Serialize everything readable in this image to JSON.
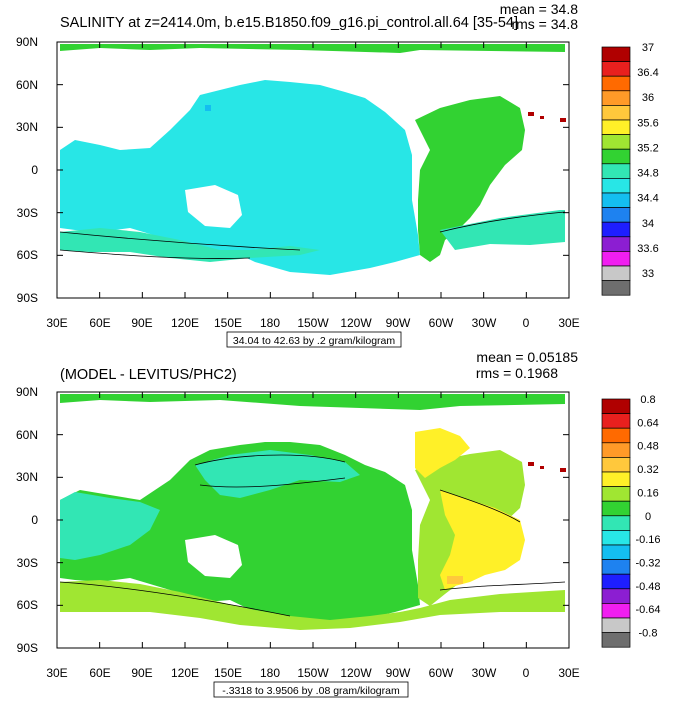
{
  "panels": [
    {
      "title": "SALINITY at z=2414.0m, b.e15.B1850.f09_g16.pi_control.all.64 [35-54]",
      "stats": {
        "mean": "mean = 34.8",
        "rms": "rms = 34.8"
      },
      "caption": "34.04 to 42.63 by .2 gram/kilogram",
      "lat_labels": [
        "90N",
        "60N",
        "30N",
        "0",
        "30S",
        "60S",
        "90S"
      ],
      "lon_labels": [
        "30E",
        "60E",
        "90E",
        "120E",
        "150E",
        "180",
        "150W",
        "120W",
        "90W",
        "60W",
        "30W",
        "0",
        "30E"
      ],
      "colorbar": {
        "colors": [
          "#b00000",
          "#e8201e",
          "#ff6a00",
          "#ff9a28",
          "#ffc83c",
          "#fff028",
          "#a0e632",
          "#32d232",
          "#32e6b4",
          "#28e6e6",
          "#14bef0",
          "#1e82f0",
          "#1e1eff",
          "#8c1ed2",
          "#f01ef0",
          "#c8c8c8",
          "#6e6e6e"
        ],
        "labels": [
          "37",
          "36.4",
          "36",
          "35.6",
          "35.2",
          "34.8",
          "34.4",
          "34",
          "33.6",
          "33"
        ]
      }
    },
    {
      "title": "(MODEL - LEVITUS/PHC2)",
      "stats": {
        "mean": "mean = 0.05185",
        "rms": "rms = 0.1968"
      },
      "caption": "-.3318 to 3.9506 by .08 gram/kilogram",
      "lat_labels": [
        "90N",
        "60N",
        "30N",
        "0",
        "30S",
        "60S",
        "90S"
      ],
      "lon_labels": [
        "30E",
        "60E",
        "90E",
        "120E",
        "150E",
        "180",
        "150W",
        "120W",
        "90W",
        "60W",
        "30W",
        "0",
        "30E"
      ],
      "colorbar": {
        "colors": [
          "#b00000",
          "#e8201e",
          "#ff6a00",
          "#ff9a28",
          "#ffc83c",
          "#fff028",
          "#a0e632",
          "#32d232",
          "#32e6b4",
          "#28e6e6",
          "#14bef0",
          "#1e82f0",
          "#1e1eff",
          "#8c1ed2",
          "#f01ef0",
          "#c8c8c8",
          "#6e6e6e"
        ],
        "labels": [
          "0.8",
          "0.64",
          "0.48",
          "0.32",
          "0.16",
          "0",
          "-0.16",
          "-0.32",
          "-0.48",
          "-0.64",
          "-0.8"
        ]
      }
    }
  ]
}
